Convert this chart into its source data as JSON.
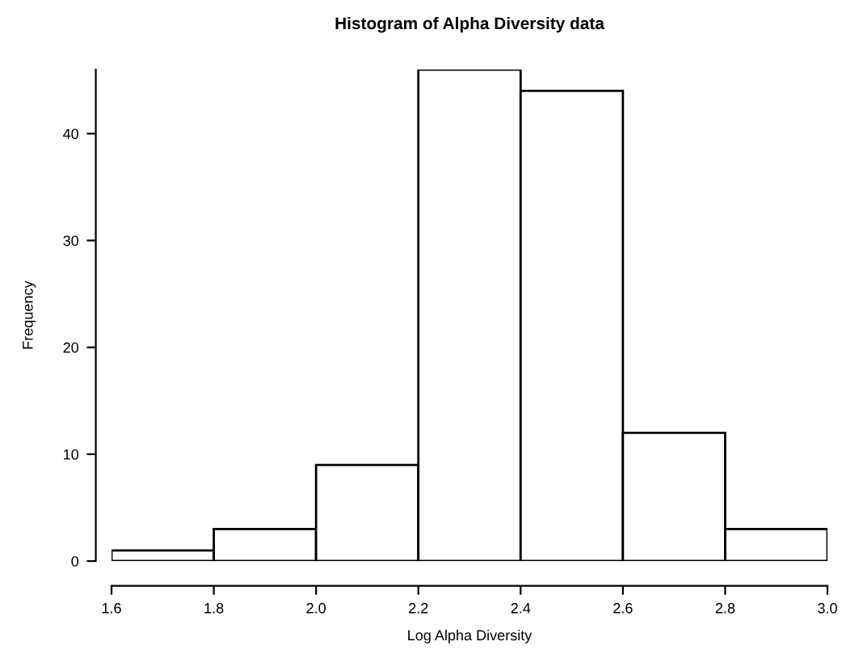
{
  "chart_data": {
    "type": "histogram",
    "title": "Histogram of Alpha Diversity data",
    "xlabel": "Log Alpha Diversity",
    "ylabel": "Frequency",
    "bins": [
      1.6,
      1.8,
      2.0,
      2.2,
      2.4,
      2.6,
      2.8,
      3.0
    ],
    "values": [
      1,
      3,
      9,
      46,
      44,
      12,
      3
    ],
    "color": "#ffffff",
    "xlim": [
      1.6,
      3.0
    ],
    "ylim": [
      0,
      46
    ],
    "xticks": [
      {
        "value": 1.6,
        "label": "1.6"
      },
      {
        "value": 1.8,
        "label": "1.8"
      },
      {
        "value": 2.0,
        "label": "2.0"
      },
      {
        "value": 2.2,
        "label": "2.2"
      },
      {
        "value": 2.4,
        "label": "2.4"
      },
      {
        "value": 2.6,
        "label": "2.6"
      },
      {
        "value": 2.8,
        "label": "2.8"
      },
      {
        "value": 3.0,
        "label": "3.0"
      }
    ],
    "yticks": [
      0,
      10,
      20,
      30,
      40
    ],
    "grid": false
  }
}
